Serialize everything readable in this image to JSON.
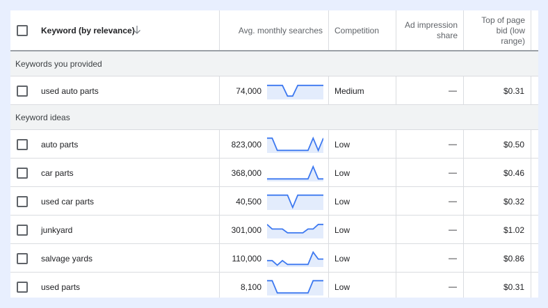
{
  "header": {
    "keyword_col": "Keyword (by relevance)",
    "avg_col": "Avg. monthly searches",
    "competition_col": "Competition",
    "impression_col_line1": "Ad impression",
    "impression_col_line2": "share",
    "bid_col_line1": "Top of page",
    "bid_col_line2": "bid (low",
    "bid_col_line3": "range)"
  },
  "groups": {
    "provided": "Keywords you provided",
    "ideas": "Keyword ideas"
  },
  "rows": [
    {
      "keyword": "used auto parts",
      "searches": "74,000",
      "competition": "Medium",
      "impression": "—",
      "bid": "$0.31",
      "trend": [
        0.85,
        0.85,
        0.85,
        0.85,
        0.15,
        0.15,
        0.85,
        0.85,
        0.85,
        0.85,
        0.85,
        0.85
      ]
    },
    {
      "keyword": "auto parts",
      "searches": "823,000",
      "competition": "Low",
      "impression": "—",
      "bid": "$0.50",
      "trend": [
        0.9,
        0.9,
        0.1,
        0.1,
        0.1,
        0.1,
        0.1,
        0.1,
        0.1,
        0.9,
        0.1,
        0.9
      ]
    },
    {
      "keyword": "car parts",
      "searches": "368,000",
      "competition": "Low",
      "impression": "—",
      "bid": "$0.46",
      "trend": [
        0.1,
        0.1,
        0.1,
        0.1,
        0.1,
        0.1,
        0.1,
        0.1,
        0.1,
        0.9,
        0.1,
        0.1
      ]
    },
    {
      "keyword": "used car parts",
      "searches": "40,500",
      "competition": "Low",
      "impression": "—",
      "bid": "$0.32",
      "trend": [
        0.9,
        0.9,
        0.9,
        0.9,
        0.9,
        0.1,
        0.9,
        0.9,
        0.9,
        0.9,
        0.9,
        0.9
      ]
    },
    {
      "keyword": "junkyard",
      "searches": "301,000",
      "competition": "Low",
      "impression": "—",
      "bid": "$1.02",
      "trend": [
        0.85,
        0.55,
        0.55,
        0.55,
        0.3,
        0.3,
        0.3,
        0.3,
        0.55,
        0.55,
        0.85,
        0.85
      ]
    },
    {
      "keyword": "salvage yards",
      "searches": "110,000",
      "competition": "Low",
      "impression": "—",
      "bid": "$0.86",
      "trend": [
        0.35,
        0.35,
        0.05,
        0.35,
        0.1,
        0.1,
        0.1,
        0.1,
        0.1,
        0.9,
        0.45,
        0.45
      ]
    },
    {
      "keyword": "used parts",
      "searches": "8,100",
      "competition": "Low",
      "impression": "—",
      "bid": "$0.31",
      "trend": [
        0.9,
        0.9,
        0.1,
        0.1,
        0.1,
        0.1,
        0.1,
        0.1,
        0.1,
        0.9,
        0.9,
        0.9
      ]
    }
  ],
  "colors": {
    "sparkline": "#3c78f0",
    "sparkline_fill": "#e3ecfc"
  },
  "icons": {
    "sort": "arrow-down-icon"
  }
}
